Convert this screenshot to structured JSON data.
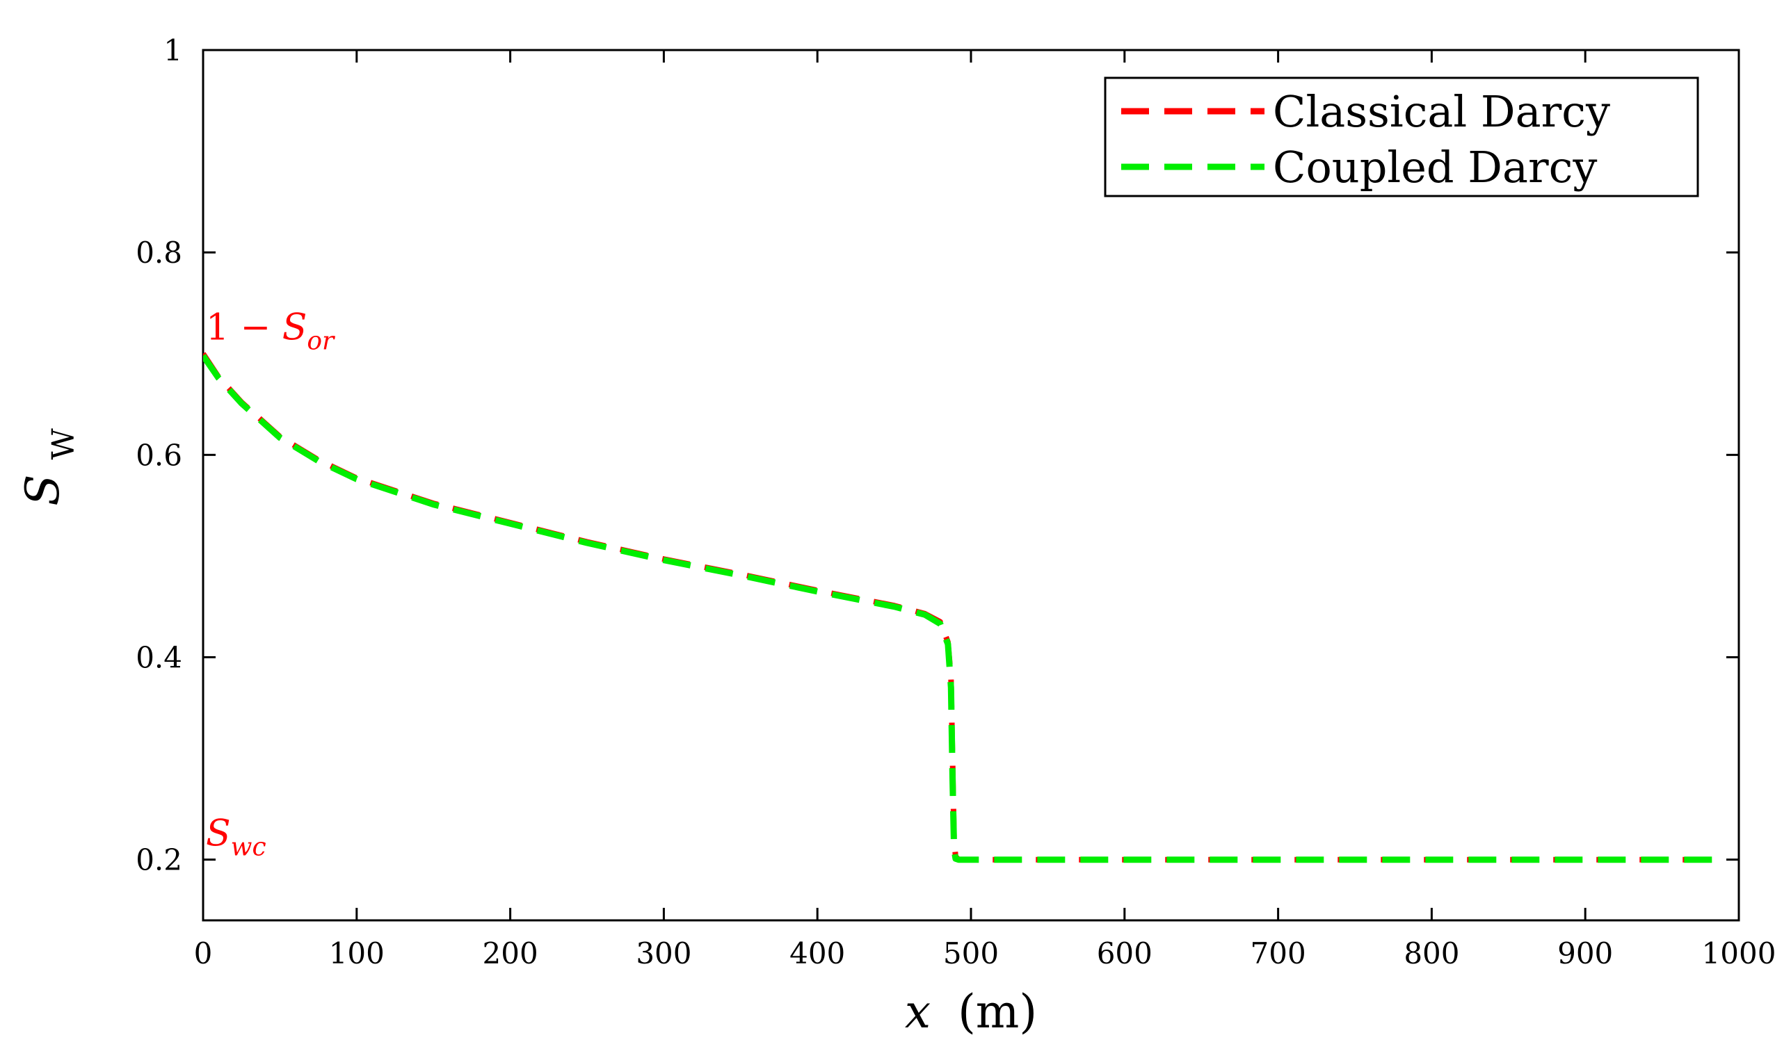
{
  "chart_data": {
    "type": "line",
    "xlabel": {
      "symbol": "x",
      "unit": "(m)"
    },
    "ylabel": {
      "symbol": "S",
      "subscript": "W"
    },
    "xlim": [
      0,
      1000
    ],
    "ylim": [
      0.14,
      1.0
    ],
    "xticks": [
      0,
      100,
      200,
      300,
      400,
      500,
      600,
      700,
      800,
      900,
      1000
    ],
    "xtick_labels": [
      "0",
      "100",
      "200",
      "300",
      "400",
      "500",
      "600",
      "700",
      "800",
      "900",
      "1000"
    ],
    "yticks": [
      0.2,
      0.4,
      0.6,
      0.8,
      1.0
    ],
    "ytick_labels": [
      "0.2",
      "0.4",
      "0.6",
      "0.8",
      "1"
    ],
    "grid": false,
    "legend_position": "top-right",
    "annotations": [
      {
        "id": "one-minus-sor",
        "prefix": "1 − ",
        "symbol": "S",
        "subscript": "or",
        "x": 0,
        "y": 0.7,
        "color": "#ff0000"
      },
      {
        "id": "swc",
        "prefix": "",
        "symbol": "S",
        "subscript": "wc",
        "x": 0,
        "y": 0.2,
        "color": "#ff0000"
      }
    ],
    "series": [
      {
        "name": "Classical Darcy",
        "color": "#ff0000",
        "x": [
          0,
          10,
          25,
          50,
          75,
          100,
          150,
          200,
          250,
          300,
          350,
          400,
          450,
          470,
          480,
          485,
          487,
          488,
          489,
          490,
          492,
          500,
          600,
          700,
          800,
          900,
          990
        ],
        "y": [
          0.7,
          0.677,
          0.652,
          0.618,
          0.595,
          0.577,
          0.552,
          0.533,
          0.514,
          0.497,
          0.482,
          0.466,
          0.451,
          0.443,
          0.435,
          0.415,
          0.38,
          0.3,
          0.22,
          0.203,
          0.2,
          0.2,
          0.2,
          0.2,
          0.2,
          0.2,
          0.2
        ]
      },
      {
        "name": "Coupled Darcy",
        "color": "#00ee00",
        "x": [
          0,
          10,
          25,
          50,
          75,
          100,
          150,
          200,
          250,
          300,
          350,
          400,
          450,
          470,
          480,
          485,
          487,
          488,
          489,
          490,
          492,
          500,
          600,
          700,
          800,
          900,
          990
        ],
        "y": [
          0.698,
          0.676,
          0.651,
          0.617,
          0.594,
          0.576,
          0.551,
          0.532,
          0.513,
          0.496,
          0.481,
          0.465,
          0.45,
          0.442,
          0.433,
          0.413,
          0.37,
          0.28,
          0.21,
          0.201,
          0.2,
          0.2,
          0.2,
          0.2,
          0.2,
          0.2,
          0.2
        ]
      }
    ]
  }
}
